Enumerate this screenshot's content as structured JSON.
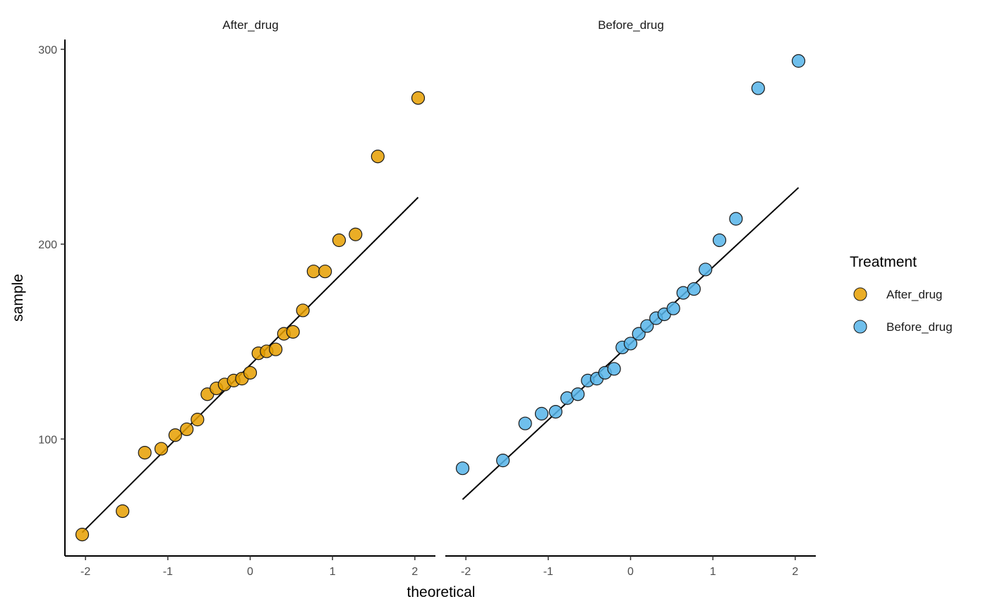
{
  "chart_data": {
    "type": "scatter",
    "xlabel": "theoretical",
    "ylabel": "sample",
    "xlim": [
      -2.25,
      2.25
    ],
    "ylim": [
      40,
      305
    ],
    "x_ticks": [
      -2,
      -1,
      0,
      1,
      2
    ],
    "x_tick_labels": [
      "-2",
      "-1",
      "0",
      "1",
      "2"
    ],
    "y_ticks": [
      100,
      200,
      300
    ],
    "y_tick_labels": [
      "100",
      "200",
      "300"
    ],
    "grid": false,
    "legend": {
      "title": "Treatment",
      "placement": "right",
      "entries": [
        {
          "label": "After_drug",
          "color": "#E69F00"
        },
        {
          "label": "Before_drug",
          "color": "#56B4E9"
        }
      ]
    },
    "panels": [
      {
        "strip": "After_drug",
        "color": "#E69F00",
        "x": [
          -2.04,
          -1.55,
          -1.28,
          -1.08,
          -0.91,
          -0.77,
          -0.64,
          -0.52,
          -0.41,
          -0.31,
          -0.2,
          -0.1,
          0,
          0.1,
          0.2,
          0.31,
          0.41,
          0.52,
          0.64,
          0.77,
          0.91,
          1.08,
          1.28,
          1.55,
          2.04
        ],
        "y": [
          51,
          63,
          93,
          95,
          102,
          105,
          110,
          123,
          126,
          128,
          130,
          131,
          134,
          144,
          145,
          146,
          154,
          155,
          166,
          186,
          186,
          202,
          205,
          245,
          275
        ],
        "qq_line": {
          "x": [
            -2.04,
            2.04
          ],
          "y": [
            52,
            224
          ]
        }
      },
      {
        "strip": "Before_drug",
        "color": "#56B4E9",
        "x": [
          -2.04,
          -1.55,
          -1.28,
          -1.08,
          -0.91,
          -0.77,
          -0.64,
          -0.52,
          -0.41,
          -0.31,
          -0.2,
          -0.1,
          0,
          0.1,
          0.2,
          0.31,
          0.41,
          0.52,
          0.64,
          0.77,
          0.91,
          1.08,
          1.28,
          1.55,
          2.04
        ],
        "y": [
          85,
          89,
          108,
          113,
          114,
          121,
          123,
          130,
          131,
          134,
          136,
          147,
          149,
          154,
          158,
          162,
          164,
          167,
          175,
          177,
          187,
          202,
          213,
          280,
          294
        ],
        "qq_line": {
          "x": [
            -2.04,
            2.04
          ],
          "y": [
            69,
            229
          ]
        }
      }
    ]
  }
}
